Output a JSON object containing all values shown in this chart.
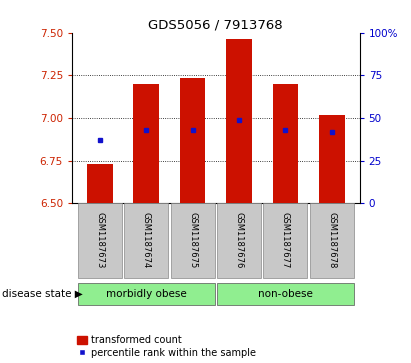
{
  "title": "GDS5056 / 7913768",
  "samples": [
    "GSM1187673",
    "GSM1187674",
    "GSM1187675",
    "GSM1187676",
    "GSM1187677",
    "GSM1187678"
  ],
  "bar_tops": [
    6.73,
    7.2,
    7.235,
    7.462,
    7.2,
    7.02
  ],
  "bar_bottom": 6.5,
  "blue_dot_y": [
    6.872,
    6.928,
    6.932,
    6.988,
    6.928,
    6.92
  ],
  "ylim": [
    6.5,
    7.5
  ],
  "yticks_left": [
    6.5,
    6.75,
    7.0,
    7.25,
    7.5
  ],
  "yticks_right_vals": [
    0,
    25,
    50,
    75,
    100
  ],
  "yticks_right_labels": [
    "0",
    "25",
    "50",
    "75",
    "100%"
  ],
  "bar_color": "#cc1100",
  "dot_color": "#1111cc",
  "group1_label": "morbidly obese",
  "group2_label": "non-obese",
  "group1_indices": [
    0,
    1,
    2
  ],
  "group2_indices": [
    3,
    4,
    5
  ],
  "disease_state_label": "disease state",
  "legend_bar_label": "transformed count",
  "legend_dot_label": "percentile rank within the sample",
  "bar_width": 0.55,
  "group_bg_color": "#90ee90",
  "tick_label_bg": "#c8c8c8",
  "left_tick_color": "#cc2200",
  "right_tick_color": "#0000cc",
  "grid_yticks": [
    6.75,
    7.0,
    7.25
  ]
}
